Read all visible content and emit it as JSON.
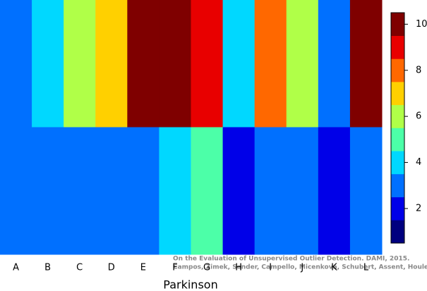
{
  "chart_data": {
    "type": "heatmap",
    "xlabel": "Parkinson",
    "categories": [
      "A",
      "B",
      "C",
      "D",
      "E",
      "F",
      "G",
      "H",
      "I",
      "J",
      "K",
      "L"
    ],
    "z": [
      [
        3,
        4,
        6,
        7,
        10,
        10,
        9,
        4,
        8,
        6,
        3,
        10
      ],
      [
        3,
        3,
        3,
        3,
        3,
        4,
        5,
        2,
        3,
        3,
        2,
        3
      ]
    ],
    "colorscale": [
      "#00007f",
      "#0000e8",
      "#0070ff",
      "#00d8ff",
      "#4cffa8",
      "#b0ff48",
      "#ffd000",
      "#ff6800",
      "#e80000",
      "#7f0000"
    ],
    "zlim": [
      0.5,
      10.5
    ],
    "zticks": [
      2,
      4,
      6,
      8,
      10
    ],
    "annotation": [
      "On the Evaluation of Unsupervised Outlier Detection. DAMI, 2015.",
      "Campos, Zimek, Sander, Campello, Micenkova, Schubert, Assent, Houle"
    ]
  }
}
